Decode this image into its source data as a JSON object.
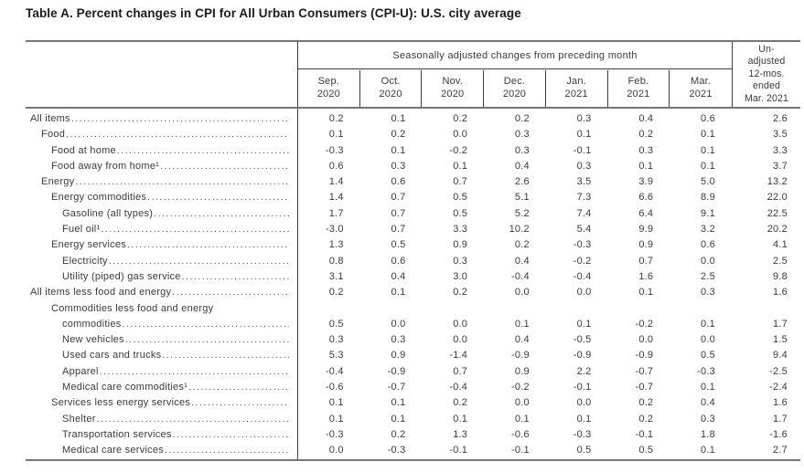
{
  "title": "Table A. Percent changes in CPI for All Urban Consumers (CPI-U): U.S. city average",
  "table": {
    "span_header": "Seasonally adjusted changes from preceding month",
    "unadjusted_header": "Un-\nadjusted\n12-mos.\nended\nMar. 2021",
    "months": [
      {
        "abbr": "Sep.",
        "year": "2020"
      },
      {
        "abbr": "Oct.",
        "year": "2020"
      },
      {
        "abbr": "Nov.",
        "year": "2020"
      },
      {
        "abbr": "Dec.",
        "year": "2020"
      },
      {
        "abbr": "Jan.",
        "year": "2021"
      },
      {
        "abbr": "Feb.",
        "year": "2021"
      },
      {
        "abbr": "Mar.",
        "year": "2021"
      }
    ],
    "rows": [
      {
        "label": "All items",
        "level": 0,
        "values": [
          "0.2",
          "0.1",
          "0.2",
          "0.2",
          "0.3",
          "0.4",
          "0.6",
          "2.6"
        ]
      },
      {
        "label": "Food",
        "level": 1,
        "values": [
          "0.1",
          "0.2",
          "0.0",
          "0.3",
          "0.1",
          "0.2",
          "0.1",
          "3.5"
        ]
      },
      {
        "label": "Food at home",
        "level": 2,
        "values": [
          "-0.3",
          "0.1",
          "-0.2",
          "0.3",
          "-0.1",
          "0.3",
          "0.1",
          "3.3"
        ]
      },
      {
        "label": "Food away from home¹",
        "level": 2,
        "values": [
          "0.6",
          "0.3",
          "0.1",
          "0.4",
          "0.3",
          "0.1",
          "0.1",
          "3.7"
        ]
      },
      {
        "label": "Energy",
        "level": 1,
        "values": [
          "1.4",
          "0.6",
          "0.7",
          "2.6",
          "3.5",
          "3.9",
          "5.0",
          "13.2"
        ]
      },
      {
        "label": "Energy commodities",
        "level": 2,
        "values": [
          "1.4",
          "0.7",
          "0.5",
          "5.1",
          "7.3",
          "6.6",
          "8.9",
          "22.0"
        ]
      },
      {
        "label": "Gasoline  (all types)",
        "level": 3,
        "values": [
          "1.7",
          "0.7",
          "0.5",
          "5.2",
          "7.4",
          "6.4",
          "9.1",
          "22.5"
        ]
      },
      {
        "label": "Fuel oil¹",
        "level": 3,
        "values": [
          "-3.0",
          "0.7",
          "3.3",
          "10.2",
          "5.4",
          "9.9",
          "3.2",
          "20.2"
        ]
      },
      {
        "label": "Energy services",
        "level": 2,
        "values": [
          "1.3",
          "0.5",
          "0.9",
          "0.2",
          "-0.3",
          "0.9",
          "0.6",
          "4.1"
        ]
      },
      {
        "label": "Electricity",
        "level": 3,
        "values": [
          "0.8",
          "0.6",
          "0.3",
          "0.4",
          "-0.2",
          "0.7",
          "0.0",
          "2.5"
        ]
      },
      {
        "label": "Utility (piped) gas service",
        "level": 3,
        "values": [
          "3.1",
          "0.4",
          "3.0",
          "-0.4",
          "-0.4",
          "1.6",
          "2.5",
          "9.8"
        ]
      },
      {
        "label": "All items less food and energy",
        "level": 0,
        "values": [
          "0.2",
          "0.1",
          "0.2",
          "0.0",
          "0.0",
          "0.1",
          "0.3",
          "1.6"
        ]
      },
      {
        "label": "Commodities less food and energy",
        "label2": "commodities",
        "level": 2,
        "values": [
          "0.5",
          "0.0",
          "0.0",
          "0.1",
          "0.1",
          "-0.2",
          "0.1",
          "1.7"
        ]
      },
      {
        "label": "New vehicles",
        "level": 3,
        "values": [
          "0.3",
          "0.3",
          "0.0",
          "0.4",
          "-0.5",
          "0.0",
          "0.0",
          "1.5"
        ]
      },
      {
        "label": "Used cars and trucks",
        "level": 3,
        "values": [
          "5.3",
          "0.9",
          "-1.4",
          "-0.9",
          "-0.9",
          "-0.9",
          "0.5",
          "9.4"
        ]
      },
      {
        "label": "Apparel",
        "level": 3,
        "values": [
          "-0.4",
          "-0.9",
          "0.7",
          "0.9",
          "2.2",
          "-0.7",
          "-0.3",
          "-2.5"
        ]
      },
      {
        "label": "Medical care commodities¹",
        "level": 3,
        "values": [
          "-0.6",
          "-0.7",
          "-0.4",
          "-0.2",
          "-0.1",
          "-0.7",
          "0.1",
          "-2.4"
        ]
      },
      {
        "label": "Services less energy services",
        "level": 2,
        "values": [
          "0.1",
          "0.1",
          "0.2",
          "0.0",
          "0.0",
          "0.2",
          "0.4",
          "1.6"
        ]
      },
      {
        "label": "Shelter",
        "level": 3,
        "values": [
          "0.1",
          "0.1",
          "0.1",
          "0.1",
          "0.1",
          "0.2",
          "0.3",
          "1.7"
        ]
      },
      {
        "label": "Transportation services",
        "level": 3,
        "values": [
          "-0.3",
          "0.2",
          "1.3",
          "-0.6",
          "-0.3",
          "-0.1",
          "1.8",
          "-1.6"
        ]
      },
      {
        "label": "Medical care services",
        "level": 3,
        "values": [
          "0.0",
          "-0.3",
          "-0.1",
          "-0.1",
          "0.5",
          "0.5",
          "0.1",
          "2.7"
        ]
      }
    ],
    "colors": {
      "rule_gray": "#767676",
      "line_dark": "#3e3e3e",
      "text": "#3a3a3a",
      "title_text": "#1b1b1b"
    }
  }
}
